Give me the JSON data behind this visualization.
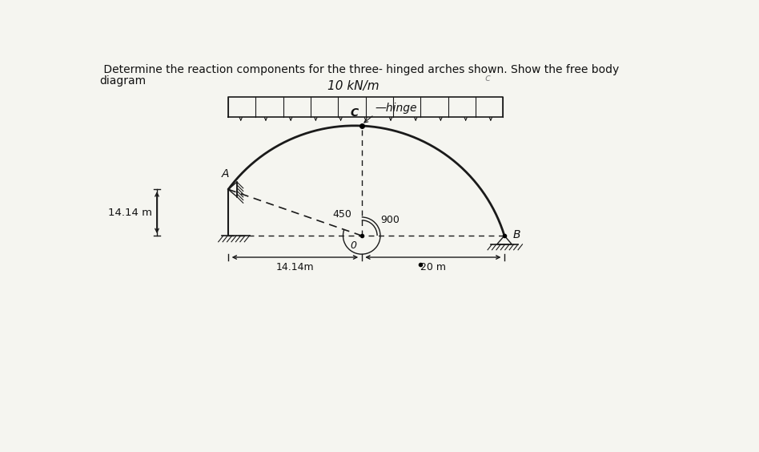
{
  "title_line1": " Determine the reaction components for the three- hinged arches shown. Show the free body",
  "title_line2": "diagram",
  "load_label": "10 kN/m",
  "hinge_label": "hinge",
  "angle1_label": "450",
  "angle2_label": "900",
  "dim_label_left": "14.14 m",
  "dim_label_bottom1": "14.14m",
  "dim_label_bottom2": "20 m",
  "point_A": "A",
  "point_B": "B",
  "point_C": "C",
  "point_O": "0",
  "small_c": "c",
  "background_color": "#f5f5f0",
  "line_color": "#1a1a1a",
  "font_color": "#111111"
}
